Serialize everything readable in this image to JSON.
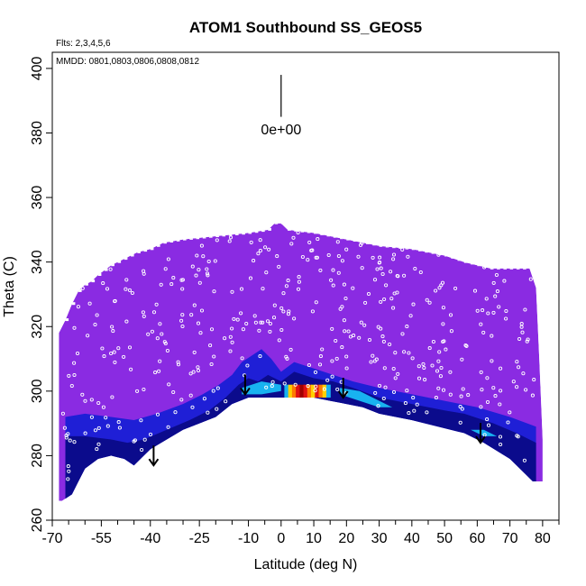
{
  "chart_data": {
    "type": "heatmap",
    "title": "ATOM1 Southbound SS_GEOS5",
    "flights_label": "Flts: 2,3,4,5,6",
    "dates_label": "MMDD: 0801,0803,0806,0808,0812",
    "xlabel": "Latitude (deg N)",
    "ylabel": "Theta (C)",
    "xlim": [
      -70,
      85
    ],
    "ylim": [
      260,
      405
    ],
    "x_ticks": [
      -70,
      -55,
      -40,
      -25,
      -10,
      0,
      10,
      20,
      30,
      40,
      50,
      60,
      70,
      80
    ],
    "x_minor_ticks": [
      -65,
      -60,
      -50,
      -45,
      -35,
      -30,
      -20,
      -15,
      -5,
      5,
      15,
      25,
      35,
      45,
      55,
      65,
      75,
      85
    ],
    "y_ticks": [
      260,
      280,
      300,
      320,
      340,
      360,
      380,
      400
    ],
    "annotation": {
      "text": "0e+00",
      "x": 0,
      "y": 381,
      "line_top": 398,
      "line_bottom": 385
    },
    "background_value_color": "#8a2be2",
    "colors": {
      "violet": "#8a2be2",
      "blue": "#1f1fd6",
      "navy": "#0b0b8c",
      "cyan": "#18b2f0",
      "yellow": "#ffd000",
      "orange": "#ff7a00",
      "red": "#e01010",
      "darkred": "#a00000"
    },
    "upper_boundary": [
      [
        -68,
        318
      ],
      [
        -66,
        322
      ],
      [
        -64,
        327
      ],
      [
        -62,
        331
      ],
      [
        -60,
        333
      ],
      [
        -58,
        334
      ],
      [
        -56,
        336
      ],
      [
        -52,
        339
      ],
      [
        -48,
        341
      ],
      [
        -44,
        343
      ],
      [
        -40,
        344
      ],
      [
        -36,
        346
      ],
      [
        -30,
        347
      ],
      [
        -20,
        348
      ],
      [
        -10,
        349
      ],
      [
        -4,
        350
      ],
      [
        -2,
        352
      ],
      [
        0,
        352
      ],
      [
        2,
        350
      ],
      [
        10,
        349
      ],
      [
        20,
        347
      ],
      [
        30,
        345
      ],
      [
        40,
        344
      ],
      [
        50,
        342
      ],
      [
        56,
        340
      ],
      [
        60,
        339
      ],
      [
        64,
        338
      ],
      [
        72,
        338
      ],
      [
        76,
        338
      ],
      [
        78,
        332
      ],
      [
        79,
        310
      ],
      [
        80,
        285
      ],
      [
        80,
        272
      ]
    ],
    "lower_boundary": [
      [
        80,
        272
      ],
      [
        77,
        272
      ],
      [
        70,
        279
      ],
      [
        62,
        284
      ],
      [
        56,
        287
      ],
      [
        40,
        291
      ],
      [
        30,
        293
      ],
      [
        25,
        295
      ],
      [
        20,
        296
      ],
      [
        15,
        297
      ],
      [
        10,
        298
      ],
      [
        5,
        298
      ],
      [
        0,
        298
      ],
      [
        -5,
        298
      ],
      [
        -10,
        298
      ],
      [
        -15,
        296
      ],
      [
        -20,
        292
      ],
      [
        -25,
        290
      ],
      [
        -30,
        288
      ],
      [
        -35,
        285
      ],
      [
        -40,
        282
      ],
      [
        -43,
        279
      ],
      [
        -45,
        277
      ],
      [
        -48,
        279
      ],
      [
        -52,
        280
      ],
      [
        -56,
        279
      ],
      [
        -60,
        276
      ],
      [
        -62,
        272
      ],
      [
        -64,
        268
      ],
      [
        -67,
        266
      ],
      [
        -68,
        266
      ]
    ],
    "navy_band_top": [
      [
        -66,
        286
      ],
      [
        -60,
        286
      ],
      [
        -52,
        285
      ],
      [
        -47,
        284
      ],
      [
        -42,
        285
      ],
      [
        -35,
        288
      ],
      [
        -28,
        291
      ],
      [
        -22,
        294
      ],
      [
        -17,
        298
      ],
      [
        -13,
        302
      ],
      [
        -10,
        304
      ],
      [
        -7,
        303
      ],
      [
        -4,
        305
      ],
      [
        0,
        303
      ],
      [
        4,
        306
      ],
      [
        10,
        304
      ],
      [
        16,
        303
      ],
      [
        22,
        301
      ],
      [
        30,
        298
      ],
      [
        40,
        296
      ],
      [
        50,
        294
      ],
      [
        56,
        293
      ],
      [
        65,
        290
      ],
      [
        72,
        287
      ],
      [
        78,
        284
      ]
    ],
    "blue_band_top": [
      [
        -66,
        292
      ],
      [
        -60,
        293
      ],
      [
        -52,
        292
      ],
      [
        -45,
        291
      ],
      [
        -38,
        293
      ],
      [
        -30,
        296
      ],
      [
        -24,
        299
      ],
      [
        -19,
        302
      ],
      [
        -15,
        305
      ],
      [
        -12,
        309
      ],
      [
        -9,
        311
      ],
      [
        -6,
        313
      ],
      [
        -3,
        310
      ],
      [
        0,
        306
      ],
      [
        4,
        309
      ],
      [
        10,
        307
      ],
      [
        16,
        305
      ],
      [
        22,
        303
      ],
      [
        30,
        301
      ],
      [
        40,
        299
      ],
      [
        50,
        297
      ],
      [
        60,
        295
      ],
      [
        70,
        292
      ],
      [
        78,
        289
      ]
    ],
    "cyan_patches": [
      [
        [
          -12,
          301
        ],
        [
          -6,
          303
        ],
        [
          0,
          302
        ],
        [
          0,
          300
        ],
        [
          -6,
          299
        ],
        [
          -12,
          299
        ]
      ],
      [
        [
          18,
          301
        ],
        [
          24,
          300
        ],
        [
          30,
          297
        ],
        [
          34,
          295
        ],
        [
          30,
          295
        ],
        [
          24,
          297
        ],
        [
          18,
          299
        ]
      ],
      [
        [
          58,
          288
        ],
        [
          62,
          286
        ],
        [
          66,
          286
        ],
        [
          62,
          288
        ]
      ]
    ],
    "hotspot": {
      "x_range": [
        1,
        15
      ],
      "y_center": 300,
      "half_height": 2
    },
    "markers": [
      [
        -39,
        277
      ],
      [
        -11,
        299
      ],
      [
        19,
        298
      ],
      [
        61,
        284
      ]
    ],
    "sample_points_count": 420
  }
}
